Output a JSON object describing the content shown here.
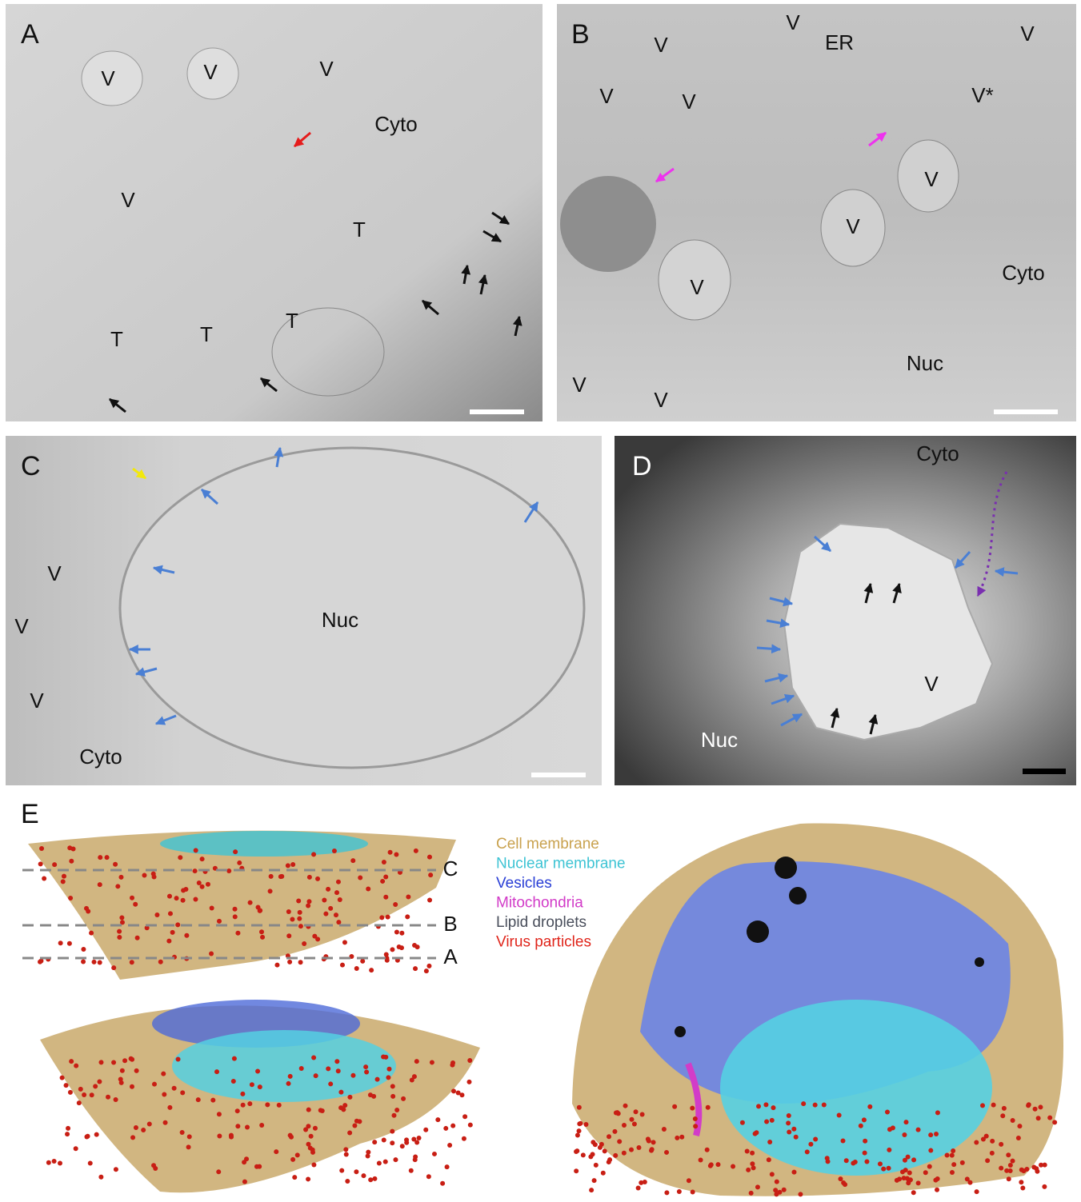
{
  "panels": [
    {
      "label": "A",
      "annotations": [
        "V",
        "V",
        "V",
        "Cyto",
        "V",
        "T",
        "T",
        "T",
        "T"
      ]
    },
    {
      "label": "B",
      "annotations": [
        "V",
        "V",
        "ER",
        "V",
        "V",
        "V",
        "V*",
        "V",
        "V",
        "Cyto",
        "V",
        "Nuc",
        "V",
        "V"
      ]
    },
    {
      "label": "C",
      "annotations": [
        "V",
        "V",
        "V",
        "Nuc",
        "Cyto"
      ]
    },
    {
      "label": "D",
      "annotations": [
        "Cyto",
        "Nuc",
        "V"
      ]
    }
  ],
  "panel_e": {
    "label": "E",
    "slice_labels": [
      "C",
      "B",
      "A"
    ],
    "legend": [
      {
        "name": "Cell membrane",
        "color": "#c9a24f"
      },
      {
        "name": "Nuclear membrane",
        "color": "#3fc4d4"
      },
      {
        "name": "Vesicles",
        "color": "#2a3fd6"
      },
      {
        "name": "Mitochondria",
        "color": "#d23cc8"
      },
      {
        "name": "Lipid droplets",
        "color": "#4a4f5c"
      },
      {
        "name": "Virus particles",
        "color": "#e0261c"
      }
    ]
  }
}
